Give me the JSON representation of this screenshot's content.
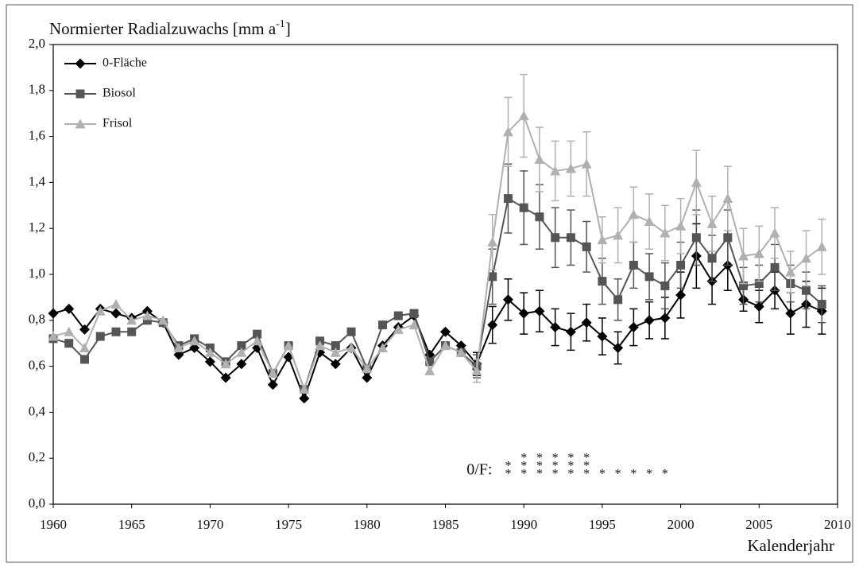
{
  "chart_data": {
    "type": "line",
    "y_label": {
      "text": "Normierter Radialzuwachs [mm a",
      "sup": "-1",
      "end": "]"
    },
    "x_label": "Kalenderjahr",
    "x": [
      1960,
      1961,
      1962,
      1963,
      1964,
      1965,
      1966,
      1967,
      1968,
      1969,
      1970,
      1971,
      1972,
      1973,
      1974,
      1975,
      1976,
      1977,
      1978,
      1979,
      1980,
      1981,
      1982,
      1983,
      1984,
      1985,
      1986,
      1987,
      1988,
      1989,
      1990,
      1991,
      1992,
      1993,
      1994,
      1995,
      1996,
      1997,
      1998,
      1999,
      2000,
      2001,
      2002,
      2003,
      2004,
      2005,
      2006,
      2007,
      2008,
      2009
    ],
    "xlim": [
      1960,
      2010
    ],
    "xticks": [
      1960,
      1965,
      1970,
      1975,
      1980,
      1985,
      1990,
      1995,
      2000,
      2005,
      2010
    ],
    "ylim": [
      0,
      2
    ],
    "yticks": [
      {
        "value": 0,
        "label": "0,0"
      },
      {
        "value": 0.2,
        "label": "0,2"
      },
      {
        "value": 0.4,
        "label": "0,4"
      },
      {
        "value": 0.6,
        "label": "0,6"
      },
      {
        "value": 0.8,
        "label": "0,8"
      },
      {
        "value": 1,
        "label": "1,0"
      },
      {
        "value": 1.2,
        "label": "1,2"
      },
      {
        "value": 1.4,
        "label": "1,4"
      },
      {
        "value": 1.6,
        "label": "1,6"
      },
      {
        "value": 1.8,
        "label": "1,8"
      },
      {
        "value": 2,
        "label": "2,0"
      }
    ],
    "legend": "upper left",
    "series": [
      {
        "name": "0-Fläche",
        "color": "#000000",
        "marker": "diamond",
        "values": [
          0.83,
          0.85,
          0.76,
          0.85,
          0.83,
          0.81,
          0.84,
          0.79,
          0.65,
          0.68,
          0.62,
          0.55,
          0.61,
          0.68,
          0.52,
          0.64,
          0.46,
          0.66,
          0.61,
          0.68,
          0.55,
          0.69,
          0.77,
          0.82,
          0.65,
          0.75,
          0.69,
          0.61,
          0.78,
          0.89,
          0.83,
          0.84,
          0.77,
          0.75,
          0.79,
          0.73,
          0.68,
          0.77,
          0.8,
          0.81,
          0.91,
          1.08,
          0.97,
          1.04,
          0.89,
          0.86,
          0.93,
          0.83,
          0.87,
          0.84
        ],
        "errors": [
          null,
          null,
          null,
          null,
          null,
          null,
          null,
          null,
          null,
          null,
          null,
          null,
          null,
          null,
          null,
          null,
          null,
          null,
          null,
          null,
          null,
          null,
          null,
          null,
          null,
          null,
          null,
          0.05,
          0.08,
          0.09,
          0.09,
          0.09,
          0.08,
          0.08,
          0.08,
          0.08,
          0.07,
          0.08,
          0.08,
          0.09,
          0.1,
          0.14,
          0.1,
          0.11,
          0.05,
          0.07,
          0.08,
          0.09,
          0.1,
          0.1
        ]
      },
      {
        "name": "Biosol",
        "color": "#555555",
        "marker": "square",
        "values": [
          0.72,
          0.7,
          0.63,
          0.73,
          0.75,
          0.75,
          0.8,
          0.79,
          0.69,
          0.72,
          0.68,
          0.62,
          0.69,
          0.74,
          0.57,
          0.69,
          0.5,
          0.71,
          0.69,
          0.75,
          0.59,
          0.78,
          0.82,
          0.83,
          0.62,
          0.69,
          0.66,
          0.6,
          0.99,
          1.33,
          1.29,
          1.25,
          1.16,
          1.16,
          1.12,
          0.97,
          0.89,
          1.04,
          0.99,
          0.95,
          1.04,
          1.16,
          1.07,
          1.16,
          0.95,
          0.96,
          1.03,
          0.96,
          0.93,
          0.87
        ],
        "errors": [
          null,
          null,
          null,
          null,
          null,
          null,
          null,
          null,
          null,
          null,
          null,
          null,
          null,
          null,
          null,
          null,
          null,
          null,
          null,
          null,
          null,
          null,
          null,
          null,
          null,
          null,
          null,
          0.05,
          0.12,
          0.15,
          0.16,
          0.14,
          0.13,
          0.12,
          0.11,
          0.1,
          0.09,
          0.1,
          0.1,
          0.1,
          0.1,
          0.12,
          0.1,
          0.12,
          0.08,
          0.08,
          0.1,
          0.08,
          0.08,
          0.08
        ]
      },
      {
        "name": "Frisol",
        "color": "#b0b0b0",
        "marker": "triangle",
        "values": [
          0.73,
          0.75,
          0.68,
          0.84,
          0.87,
          0.8,
          0.82,
          0.8,
          0.68,
          0.71,
          0.66,
          0.61,
          0.66,
          0.71,
          0.57,
          0.69,
          0.5,
          0.69,
          0.66,
          0.68,
          0.59,
          0.68,
          0.76,
          0.78,
          0.58,
          0.69,
          0.66,
          0.58,
          1.14,
          1.62,
          1.69,
          1.5,
          1.45,
          1.46,
          1.48,
          1.15,
          1.17,
          1.26,
          1.23,
          1.18,
          1.21,
          1.4,
          1.22,
          1.33,
          1.08,
          1.09,
          1.18,
          1.01,
          1.07,
          1.12
        ],
        "errors": [
          null,
          null,
          null,
          null,
          null,
          null,
          null,
          null,
          null,
          null,
          null,
          null,
          null,
          null,
          null,
          null,
          null,
          null,
          null,
          null,
          null,
          null,
          null,
          null,
          null,
          null,
          null,
          0.05,
          0.12,
          0.15,
          0.18,
          0.14,
          0.13,
          0.12,
          0.14,
          0.1,
          0.12,
          0.12,
          0.12,
          0.12,
          0.12,
          0.14,
          0.12,
          0.14,
          0.12,
          0.12,
          0.11,
          0.09,
          0.12,
          0.12
        ]
      }
    ],
    "significance": {
      "label": "0/F:",
      "symbol": "*",
      "rows": [
        [
          1990,
          1991,
          1992,
          1993,
          1994
        ],
        [
          1989,
          1990,
          1991,
          1992,
          1993,
          1994
        ],
        [
          1989,
          1990,
          1991,
          1992,
          1993,
          1994,
          1995,
          1996,
          1997,
          1998,
          1999
        ]
      ]
    }
  }
}
